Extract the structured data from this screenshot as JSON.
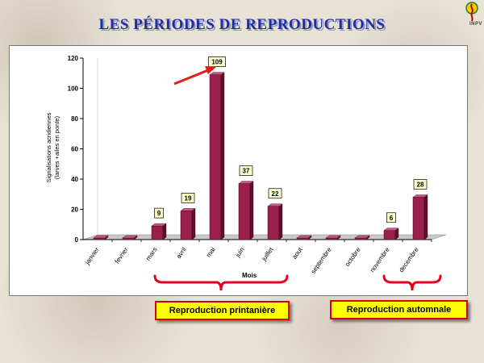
{
  "slide": {
    "title": "LES PÉRIODES DE REPRODUCTIONS",
    "logo_text": "INPV"
  },
  "chart_data": {
    "type": "bar",
    "title": "",
    "xlabel": "Mois",
    "ylabel_line1": "Signalisations acridiennes",
    "ylabel_line2": "(larves +ailes en ponte)",
    "categories": [
      "janvier",
      "fevrier",
      "mars",
      "avril",
      "mai",
      "juin",
      "juillet",
      "aout",
      "septembre",
      "octobre",
      "novembre",
      "decembre"
    ],
    "values": [
      0,
      0,
      9,
      19,
      109,
      37,
      22,
      0,
      0,
      0,
      6,
      28
    ],
    "data_labels": [
      "",
      "",
      "9",
      "19",
      "109",
      "37",
      "22",
      "",
      "",
      "",
      "6",
      "28"
    ],
    "ylim": [
      0,
      120
    ],
    "yticks": [
      0,
      20,
      40,
      60,
      80,
      100,
      120
    ],
    "grid": false,
    "bar_color": "#9b1f4d",
    "bar_side_color": "#5e0f2c",
    "bar_top_color": "#c45a82",
    "highlight_arrow_color": "#e41b1b"
  },
  "annotations": {
    "spring_label": "Reproduction printanière",
    "autumn_label": "Reproduction automnale",
    "brace_color": "#e8001c"
  }
}
